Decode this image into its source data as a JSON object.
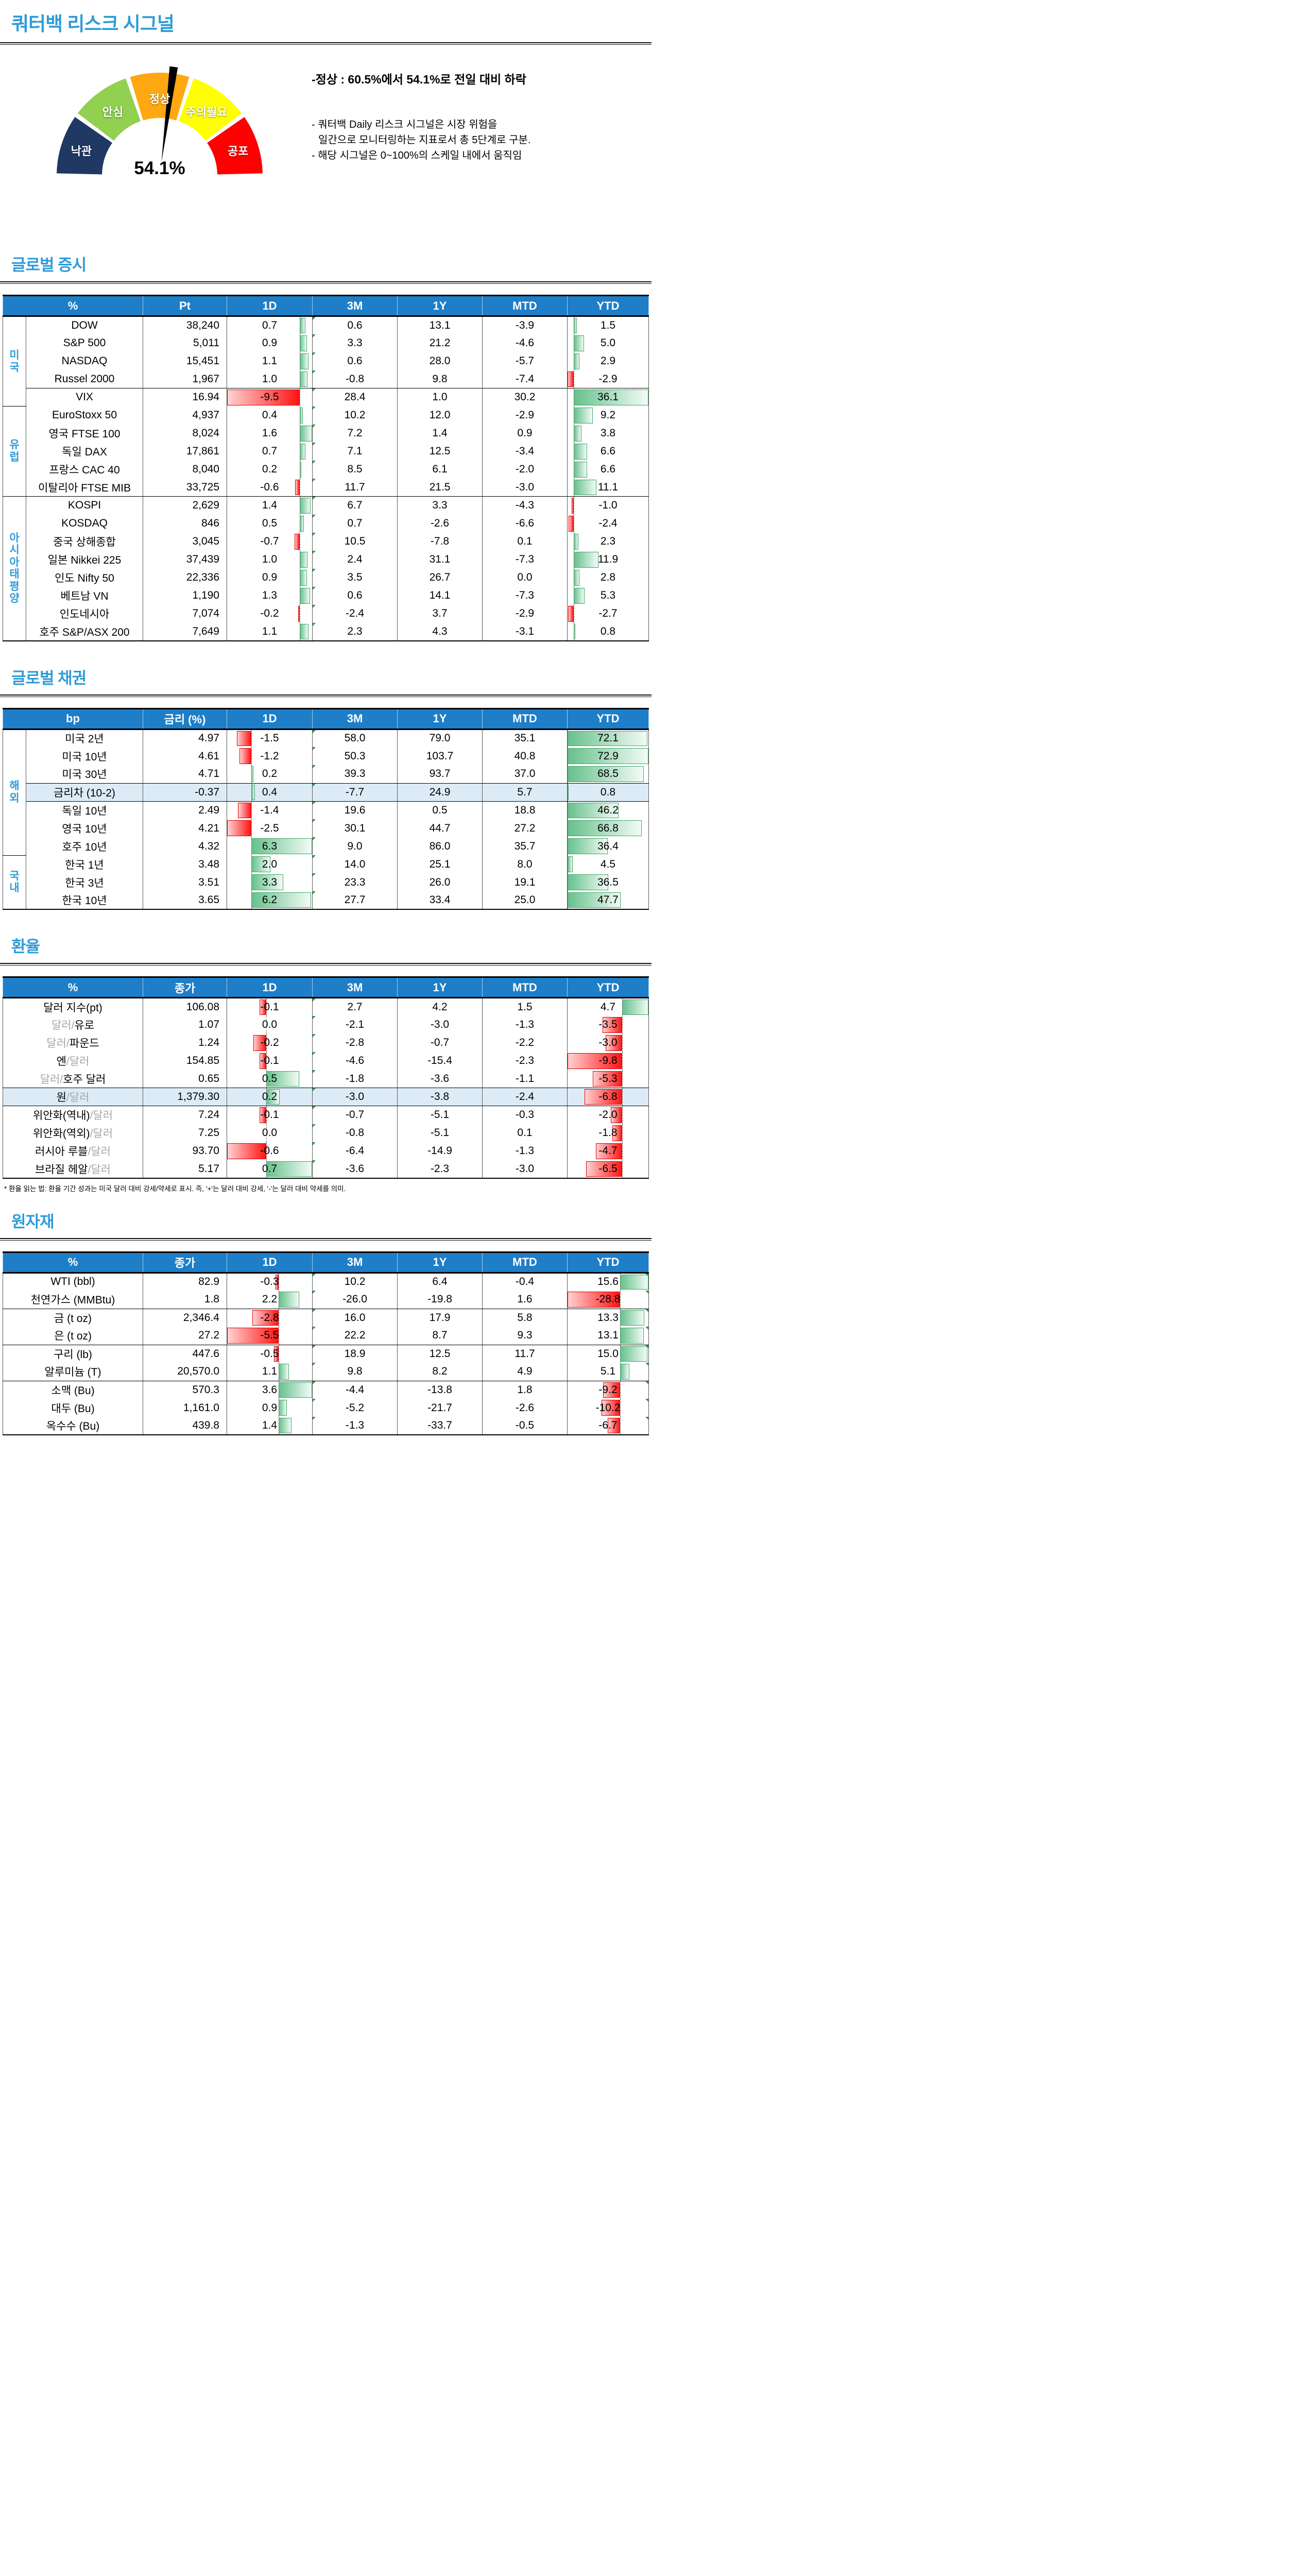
{
  "page": {
    "title": "쿼터백 리스크 시그널"
  },
  "colors": {
    "accent_blue": "#2F9BD8",
    "header_bg": "#1E7EC8",
    "highlight_row": "#DDEBF7",
    "muted_text": "#A6A6A6",
    "bar_green": "#3FA768",
    "bar_green_fill": "#66C18C",
    "bar_red": "#E00000",
    "bar_red_fill": "#FF1414",
    "grid_line": "#595959",
    "heavy_line": "#000000"
  },
  "gauge": {
    "value_label": "54.1%",
    "value_pct": 54.1,
    "segments": [
      {
        "label": "낙관",
        "color": "#1F3864"
      },
      {
        "label": "안심",
        "color": "#92D050"
      },
      {
        "label": "정상",
        "color": "#FFA812"
      },
      {
        "label": "주의필요",
        "color": "#FFFF00"
      },
      {
        "label": "공포",
        "color": "#FF0000"
      }
    ]
  },
  "signal_notes": {
    "headline": "-정상 : 60.5%에서 54.1%로 전일 대비 하락",
    "lines": [
      "- 쿼터백 Daily 리스크 시그널은 시장 위험을",
      "일간으로 모니터링하는 지표로서 총 5단계로 구분.",
      "- 해당 시그널은 0~100%의 스케일 내에서 움직임"
    ]
  },
  "fx_footnote": "* 환율 읽는 법: 환율 기간 성과는 미국 달러 대비 강세/약세로 표시. 즉, '+'는 달러 대비 강세, '-'는 달러 대비 약세를 의미.",
  "sections": [
    {
      "id": "global-equities",
      "title": "글로벌 증시",
      "columns": [
        "%",
        "Pt",
        "1D",
        "3M",
        "1Y",
        "MTD",
        "YTD"
      ],
      "groups": [
        {
          "label": "미국",
          "start": 0,
          "span": 5
        },
        {
          "label": "유럽",
          "start": 5,
          "span": 5
        },
        {
          "label": "아시아태평양",
          "start": 10,
          "span": 8
        }
      ],
      "sep_after": [
        3,
        9
      ],
      "highlight": [],
      "ytd_corner_flags": false,
      "rows": [
        {
          "name": "DOW",
          "value": "38,240",
          "perf": [
            0.7,
            0.6,
            13.1,
            -3.9,
            1.5
          ]
        },
        {
          "name": "S&P 500",
          "value": "5,011",
          "perf": [
            0.9,
            3.3,
            21.2,
            -4.6,
            5.0
          ]
        },
        {
          "name": "NASDAQ",
          "value": "15,451",
          "perf": [
            1.1,
            0.6,
            28.0,
            -5.7,
            2.9
          ]
        },
        {
          "name": "Russel 2000",
          "value": "1,967",
          "perf": [
            1.0,
            -0.8,
            9.8,
            -7.4,
            -2.9
          ]
        },
        {
          "name": "VIX",
          "value": "16.94",
          "perf": [
            -9.5,
            28.4,
            1.0,
            30.2,
            36.1
          ]
        },
        {
          "name": "EuroStoxx 50",
          "value": "4,937",
          "perf": [
            0.4,
            10.2,
            12.0,
            -2.9,
            9.2
          ]
        },
        {
          "name": "영국 FTSE 100",
          "value": "8,024",
          "perf": [
            1.6,
            7.2,
            1.4,
            0.9,
            3.8
          ]
        },
        {
          "name": "독일 DAX",
          "value": "17,861",
          "perf": [
            0.7,
            7.1,
            12.5,
            -3.4,
            6.6
          ]
        },
        {
          "name": "프랑스 CAC 40",
          "value": "8,040",
          "perf": [
            0.2,
            8.5,
            6.1,
            -2.0,
            6.6
          ]
        },
        {
          "name": "이탈리아 FTSE MIB",
          "value": "33,725",
          "perf": [
            -0.6,
            11.7,
            21.5,
            -3.0,
            11.1
          ]
        },
        {
          "name": "KOSPI",
          "value": "2,629",
          "perf": [
            1.4,
            6.7,
            3.3,
            -4.3,
            -1.0
          ]
        },
        {
          "name": "KOSDAQ",
          "value": "846",
          "perf": [
            0.5,
            0.7,
            -2.6,
            -6.6,
            -2.4
          ]
        },
        {
          "name": "중국 상해종합",
          "value": "3,045",
          "perf": [
            -0.7,
            10.5,
            -7.8,
            0.1,
            2.3
          ]
        },
        {
          "name": "일본 Nikkei 225",
          "value": "37,439",
          "perf": [
            1.0,
            2.4,
            31.1,
            -7.3,
            11.9
          ]
        },
        {
          "name": "인도 Nifty 50",
          "value": "22,336",
          "perf": [
            0.9,
            3.5,
            26.7,
            0.0,
            2.8
          ]
        },
        {
          "name": "베트남 VN",
          "value": "1,190",
          "perf": [
            1.3,
            0.6,
            14.1,
            -7.3,
            5.3
          ]
        },
        {
          "name": "인도네시아",
          "value": "7,074",
          "perf": [
            -0.2,
            -2.4,
            3.7,
            -2.9,
            -2.7
          ]
        },
        {
          "name": "호주 S&P/ASX 200",
          "value": "7,649",
          "perf": [
            1.1,
            2.3,
            4.3,
            -3.1,
            0.8
          ]
        }
      ]
    },
    {
      "id": "global-bonds",
      "title": "글로벌 채권",
      "columns": [
        "bp",
        "금리 (%)",
        "1D",
        "3M",
        "1Y",
        "MTD",
        "YTD"
      ],
      "groups": [
        {
          "label": "해외",
          "start": 0,
          "span": 7
        },
        {
          "label": "국내",
          "start": 7,
          "span": 3
        }
      ],
      "sep_after": [
        2,
        3
      ],
      "highlight": [
        3
      ],
      "ytd_corner_flags": false,
      "rows": [
        {
          "name": "미국 2년",
          "value": "4.97",
          "perf": [
            -1.5,
            58.0,
            79.0,
            35.1,
            72.1
          ]
        },
        {
          "name": "미국 10년",
          "value": "4.61",
          "perf": [
            -1.2,
            50.3,
            103.7,
            40.8,
            72.9
          ]
        },
        {
          "name": "미국 30년",
          "value": "4.71",
          "perf": [
            0.2,
            39.3,
            93.7,
            37.0,
            68.5
          ]
        },
        {
          "name": "금리차 (10-2)",
          "value": "-0.37",
          "perf": [
            0.4,
            -7.7,
            24.9,
            5.7,
            0.8
          ]
        },
        {
          "name": "독일 10년",
          "value": "2.49",
          "perf": [
            -1.4,
            19.6,
            0.5,
            18.8,
            46.2
          ]
        },
        {
          "name": "영국 10년",
          "value": "4.21",
          "perf": [
            -2.5,
            30.1,
            44.7,
            27.2,
            66.8
          ]
        },
        {
          "name": "호주 10년",
          "value": "4.32",
          "perf": [
            6.3,
            9.0,
            86.0,
            35.7,
            36.4
          ]
        },
        {
          "name": "한국 1년",
          "value": "3.48",
          "perf": [
            2.0,
            14.0,
            25.1,
            8.0,
            4.5
          ]
        },
        {
          "name": "한국 3년",
          "value": "3.51",
          "perf": [
            3.3,
            23.3,
            26.0,
            19.1,
            36.5
          ]
        },
        {
          "name": "한국 10년",
          "value": "3.65",
          "perf": [
            6.2,
            27.7,
            33.4,
            25.0,
            47.7
          ]
        }
      ]
    },
    {
      "id": "fx",
      "title": "환율",
      "columns": [
        "%",
        "종가",
        "1D",
        "3M",
        "1Y",
        "MTD",
        "YTD"
      ],
      "groups": null,
      "sep_after": [
        4,
        5
      ],
      "highlight": [
        5
      ],
      "ytd_corner_flags": false,
      "rows": [
        {
          "name_parts": [
            [
              "달러 지수(pt)",
              "b"
            ]
          ],
          "value": "106.08",
          "perf": [
            -0.1,
            2.7,
            4.2,
            1.5,
            4.7
          ]
        },
        {
          "name_parts": [
            [
              "달러/",
              "m"
            ],
            [
              "유로",
              "b"
            ]
          ],
          "value": "1.07",
          "perf": [
            0.0,
            -2.1,
            -3.0,
            -1.3,
            -3.5
          ]
        },
        {
          "name_parts": [
            [
              "달러/",
              "m"
            ],
            [
              "파운드",
              "b"
            ]
          ],
          "value": "1.24",
          "perf": [
            -0.2,
            -2.8,
            -0.7,
            -2.2,
            -3.0
          ]
        },
        {
          "name_parts": [
            [
              "엔",
              "b"
            ],
            [
              "/달러",
              "m"
            ]
          ],
          "value": "154.85",
          "perf": [
            -0.1,
            -4.6,
            -15.4,
            -2.3,
            -9.8
          ]
        },
        {
          "name_parts": [
            [
              "달러/",
              "m"
            ],
            [
              "호주 달러",
              "b"
            ]
          ],
          "value": "0.65",
          "perf": [
            0.5,
            -1.8,
            -3.6,
            -1.1,
            -5.3
          ]
        },
        {
          "name_parts": [
            [
              "원",
              "b"
            ],
            [
              "/달러",
              "m"
            ]
          ],
          "value": "1,379.30",
          "perf": [
            0.2,
            -3.0,
            -3.8,
            -2.4,
            -6.8
          ]
        },
        {
          "name_parts": [
            [
              "위안화(역내)",
              "b"
            ],
            [
              "/달러",
              "m"
            ]
          ],
          "value": "7.24",
          "perf": [
            -0.1,
            -0.7,
            -5.1,
            -0.3,
            -2.0
          ]
        },
        {
          "name_parts": [
            [
              "위안화(역외)",
              "b"
            ],
            [
              "/달러",
              "m"
            ]
          ],
          "value": "7.25",
          "perf": [
            0.0,
            -0.8,
            -5.1,
            0.1,
            -1.8
          ]
        },
        {
          "name_parts": [
            [
              "러시아 루블",
              "b"
            ],
            [
              "/달러",
              "m"
            ]
          ],
          "value": "93.70",
          "perf": [
            -0.6,
            -6.4,
            -14.9,
            -1.3,
            -4.7
          ]
        },
        {
          "name_parts": [
            [
              "브라질 헤알",
              "b"
            ],
            [
              "/달러",
              "m"
            ]
          ],
          "value": "5.17",
          "perf": [
            0.7,
            -3.6,
            -2.3,
            -3.0,
            -6.5
          ]
        }
      ]
    },
    {
      "id": "commodities",
      "title": "원자재",
      "columns": [
        "%",
        "종가",
        "1D",
        "3M",
        "1Y",
        "MTD",
        "YTD"
      ],
      "groups": null,
      "sep_after": [
        1,
        3,
        5
      ],
      "highlight": [],
      "ytd_corner_flags": true,
      "rows": [
        {
          "name": "WTI (bbl)",
          "value": "82.9",
          "perf": [
            -0.3,
            10.2,
            6.4,
            -0.4,
            15.6
          ]
        },
        {
          "name": "천연가스 (MMBtu)",
          "value": "1.8",
          "perf": [
            2.2,
            -26.0,
            -19.8,
            1.6,
            -28.8
          ]
        },
        {
          "name": "금 (t oz)",
          "value": "2,346.4",
          "perf": [
            -2.8,
            16.0,
            17.9,
            5.8,
            13.3
          ]
        },
        {
          "name": "은 (t oz)",
          "value": "27.2",
          "perf": [
            -5.5,
            22.2,
            8.7,
            9.3,
            13.1
          ]
        },
        {
          "name": "구리 (lb)",
          "value": "447.6",
          "perf": [
            -0.5,
            18.9,
            12.5,
            11.7,
            15.0
          ]
        },
        {
          "name": "알루미늄 (T)",
          "value": "20,570.0",
          "perf": [
            1.1,
            9.8,
            8.2,
            4.9,
            5.1
          ]
        },
        {
          "name": "소맥 (Bu)",
          "value": "570.3",
          "perf": [
            3.6,
            -4.4,
            -13.8,
            1.8,
            -9.2
          ]
        },
        {
          "name": "대두 (Bu)",
          "value": "1,161.0",
          "perf": [
            0.9,
            -5.2,
            -21.7,
            -2.6,
            -10.2
          ]
        },
        {
          "name": "옥수수 (Bu)",
          "value": "439.8",
          "perf": [
            1.4,
            -1.3,
            -33.7,
            -0.5,
            -6.7
          ]
        }
      ]
    }
  ]
}
